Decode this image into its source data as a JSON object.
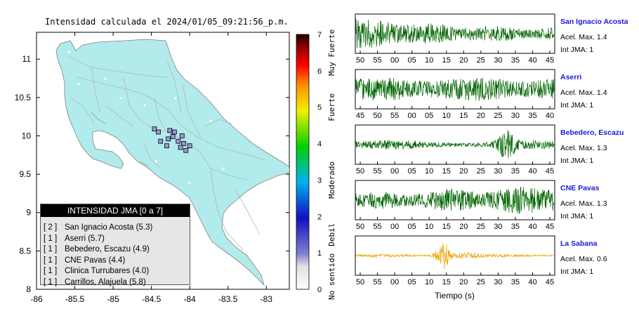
{
  "map": {
    "title": "Intensidad calculada el 2024/01/05_09:21:56_p.m.",
    "y_ticks": [
      "11",
      "10.5",
      "10",
      "9.5",
      "9",
      "8.5",
      "8"
    ],
    "y_values": [
      11,
      10.5,
      10,
      9.5,
      9,
      8.5,
      8
    ],
    "x_ticks": [
      "-86",
      "-85.5",
      "-85",
      "-84.5",
      "-84",
      "-83.5",
      "-83"
    ],
    "x_values": [
      -86,
      -85.5,
      -85,
      -84.5,
      -84,
      -83.5,
      -83
    ],
    "xlim": [
      -86,
      -82.7
    ],
    "ylim": [
      8,
      11.35
    ],
    "land_color": "#b2ebeb",
    "legend": {
      "title": "INTENSIDAD JMA [0 a 7]",
      "items": [
        {
          "count": "[ 2 ]",
          "label": "San Ignacio Acosta (5.3)"
        },
        {
          "count": "[ 1 ]",
          "label": "Aserri (5.7)"
        },
        {
          "count": "[ 1 ]",
          "label": "Bebedero, Escazu (4.9)"
        },
        {
          "count": "[ 1 ]",
          "label": "CNE Pavas (4.4)"
        },
        {
          "count": "[ 1 ]",
          "label": "Clinica Turrubares (4.0)"
        },
        {
          "count": "[ 1 ]",
          "label": "Carrillos, Alajuela (5.8)"
        }
      ]
    },
    "stations": [
      {
        "lon": -84.46,
        "lat": 10.09
      },
      {
        "lon": -84.41,
        "lat": 10.05
      },
      {
        "lon": -84.26,
        "lat": 10.07
      },
      {
        "lon": -84.2,
        "lat": 10.05
      },
      {
        "lon": -84.1,
        "lat": 10.0
      },
      {
        "lon": -84.22,
        "lat": 9.99
      },
      {
        "lon": -84.28,
        "lat": 9.96
      },
      {
        "lon": -84.15,
        "lat": 9.93
      },
      {
        "lon": -84.08,
        "lat": 9.9
      },
      {
        "lon": -84.12,
        "lat": 9.85
      },
      {
        "lon": -84.0,
        "lat": 9.87
      },
      {
        "lon": -84.05,
        "lat": 9.81
      },
      {
        "lon": -84.38,
        "lat": 9.93
      },
      {
        "lon": -84.3,
        "lat": 9.87
      }
    ]
  },
  "colorbar": {
    "ticks": [
      "7",
      "6",
      "5",
      "4",
      "3",
      "2",
      "1",
      "0"
    ],
    "labels": [
      "Muy Fuerte",
      "Fuerte",
      "Moderado",
      "Debil",
      "No sentido"
    ],
    "range": [
      0,
      7
    ]
  },
  "seismograms": {
    "xlabel": "Tiempo (s)",
    "traces": [
      {
        "name": "San Ignacio Acosta",
        "acel": "Acel. Max. 1.4",
        "int": "Int JMA: 1",
        "color": "#006400",
        "ticks": [
          "50",
          "55",
          "00",
          "05",
          "10",
          "15",
          "20",
          "25",
          "30",
          "35",
          "40",
          "45"
        ],
        "envelope": "early"
      },
      {
        "name": "Aserri",
        "acel": "Acel. Max. 1.4",
        "int": "Int JMA: 1",
        "color": "#006400",
        "ticks": [
          "45",
          "50",
          "55",
          "00",
          "05",
          "10",
          "15",
          "20",
          "25",
          "30",
          "35",
          "40"
        ],
        "envelope": "flat"
      },
      {
        "name": "Bebedero, Escazu",
        "acel": "Acel. Max. 1.3",
        "int": "Int JMA: 1",
        "color": "#006400",
        "ticks": [
          "50",
          "55",
          "00",
          "05",
          "10",
          "15",
          "20",
          "25",
          "30",
          "35",
          "40",
          "45"
        ],
        "envelope": "late"
      },
      {
        "name": "CNE Pavas",
        "acel": "Acel. Max. 1.3",
        "int": "Int JMA: 1",
        "color": "#006400",
        "ticks": [
          "50",
          "55",
          "00",
          "05",
          "10",
          "15",
          "20",
          "25",
          "30",
          "35",
          "40",
          "45"
        ],
        "envelope": "grow"
      },
      {
        "name": "La Sabana",
        "acel": "Acel. Max. 0.6",
        "int": "Int JMA: 1",
        "color": "#f0a500",
        "ticks": [
          "50",
          "55",
          "00",
          "05",
          "10",
          "15",
          "20",
          "25",
          "30",
          "35",
          "40",
          "45"
        ],
        "envelope": "mid"
      }
    ]
  }
}
